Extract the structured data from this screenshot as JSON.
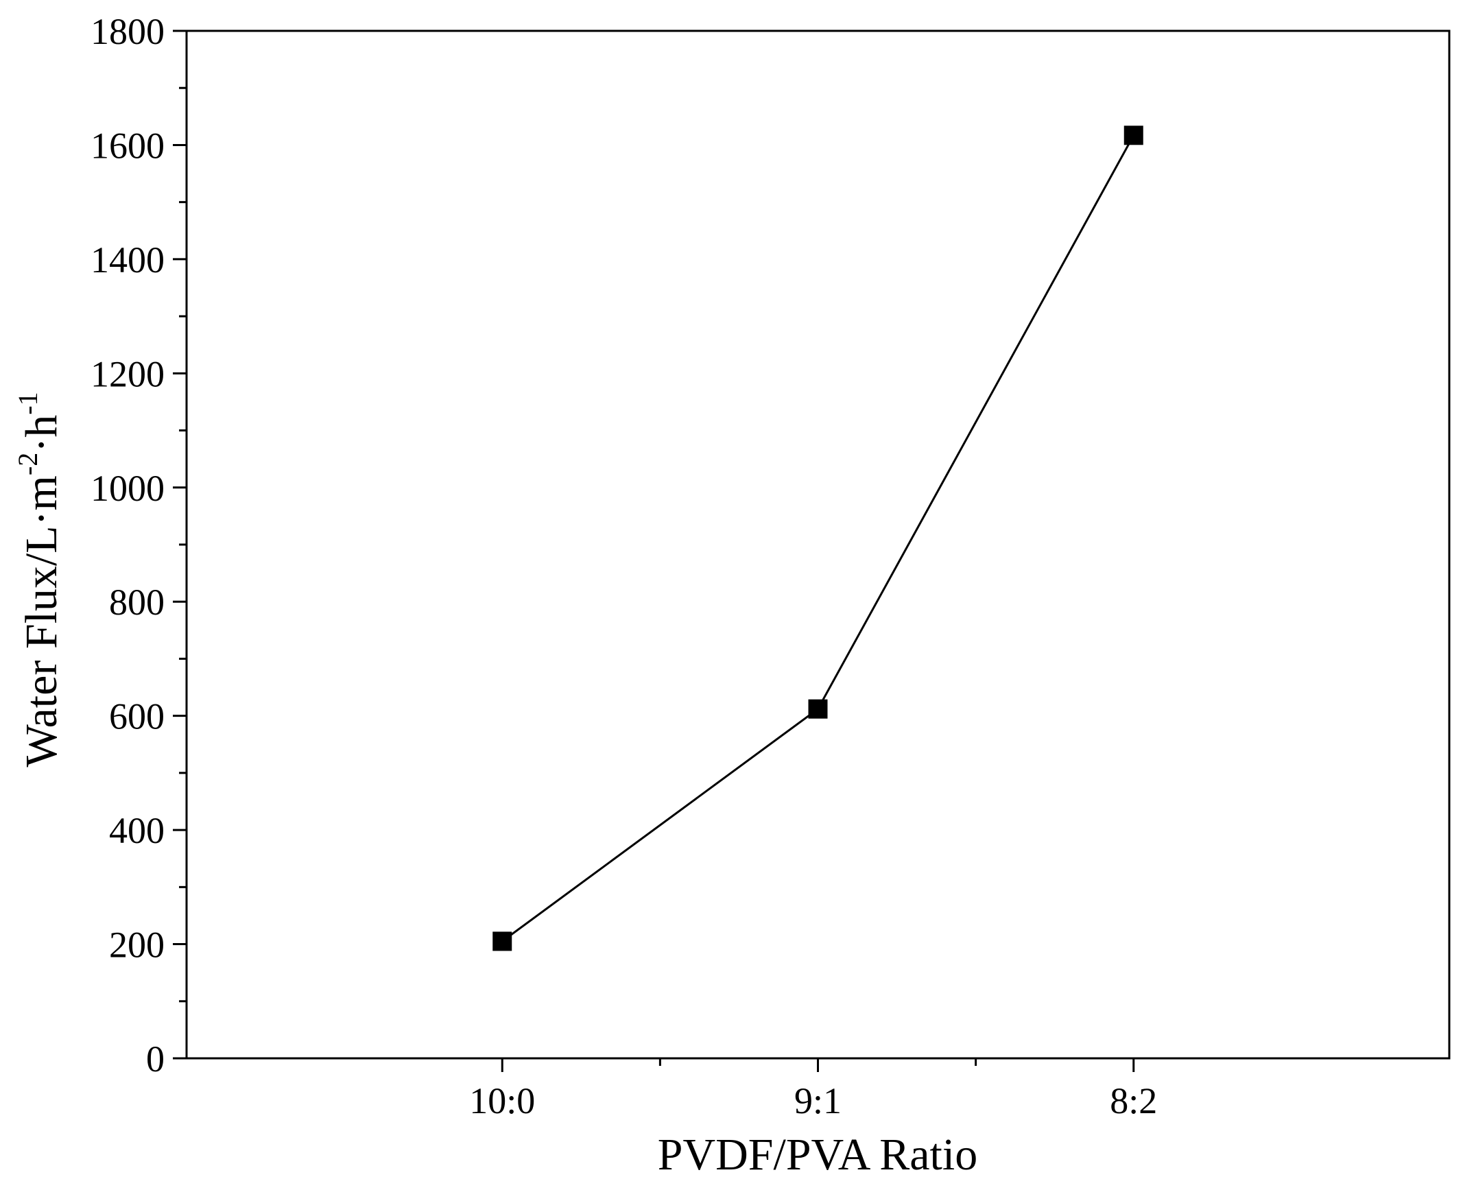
{
  "chart_data": {
    "type": "line",
    "title": "",
    "xlabel": "PVDF/PVA Ratio",
    "ylabel": {
      "main": "Water Flux/L·m",
      "sup1": "-2",
      "mid": "·h",
      "sup2": "-1"
    },
    "categories": [
      "10:0",
      "9:1",
      "8:2"
    ],
    "series": [
      {
        "values": [
          205,
          612,
          1617
        ],
        "marker": "square",
        "color": "#000000"
      }
    ],
    "ylim": [
      0,
      1800
    ],
    "yticks": [
      0,
      200,
      400,
      600,
      800,
      1000,
      1200,
      1400,
      1600,
      1800
    ],
    "ytick_labels": [
      "0",
      "200",
      "400",
      "600",
      "800",
      "1000",
      "1200",
      "1400",
      "1600",
      "1800"
    ],
    "grid": false,
    "legend": "none"
  }
}
